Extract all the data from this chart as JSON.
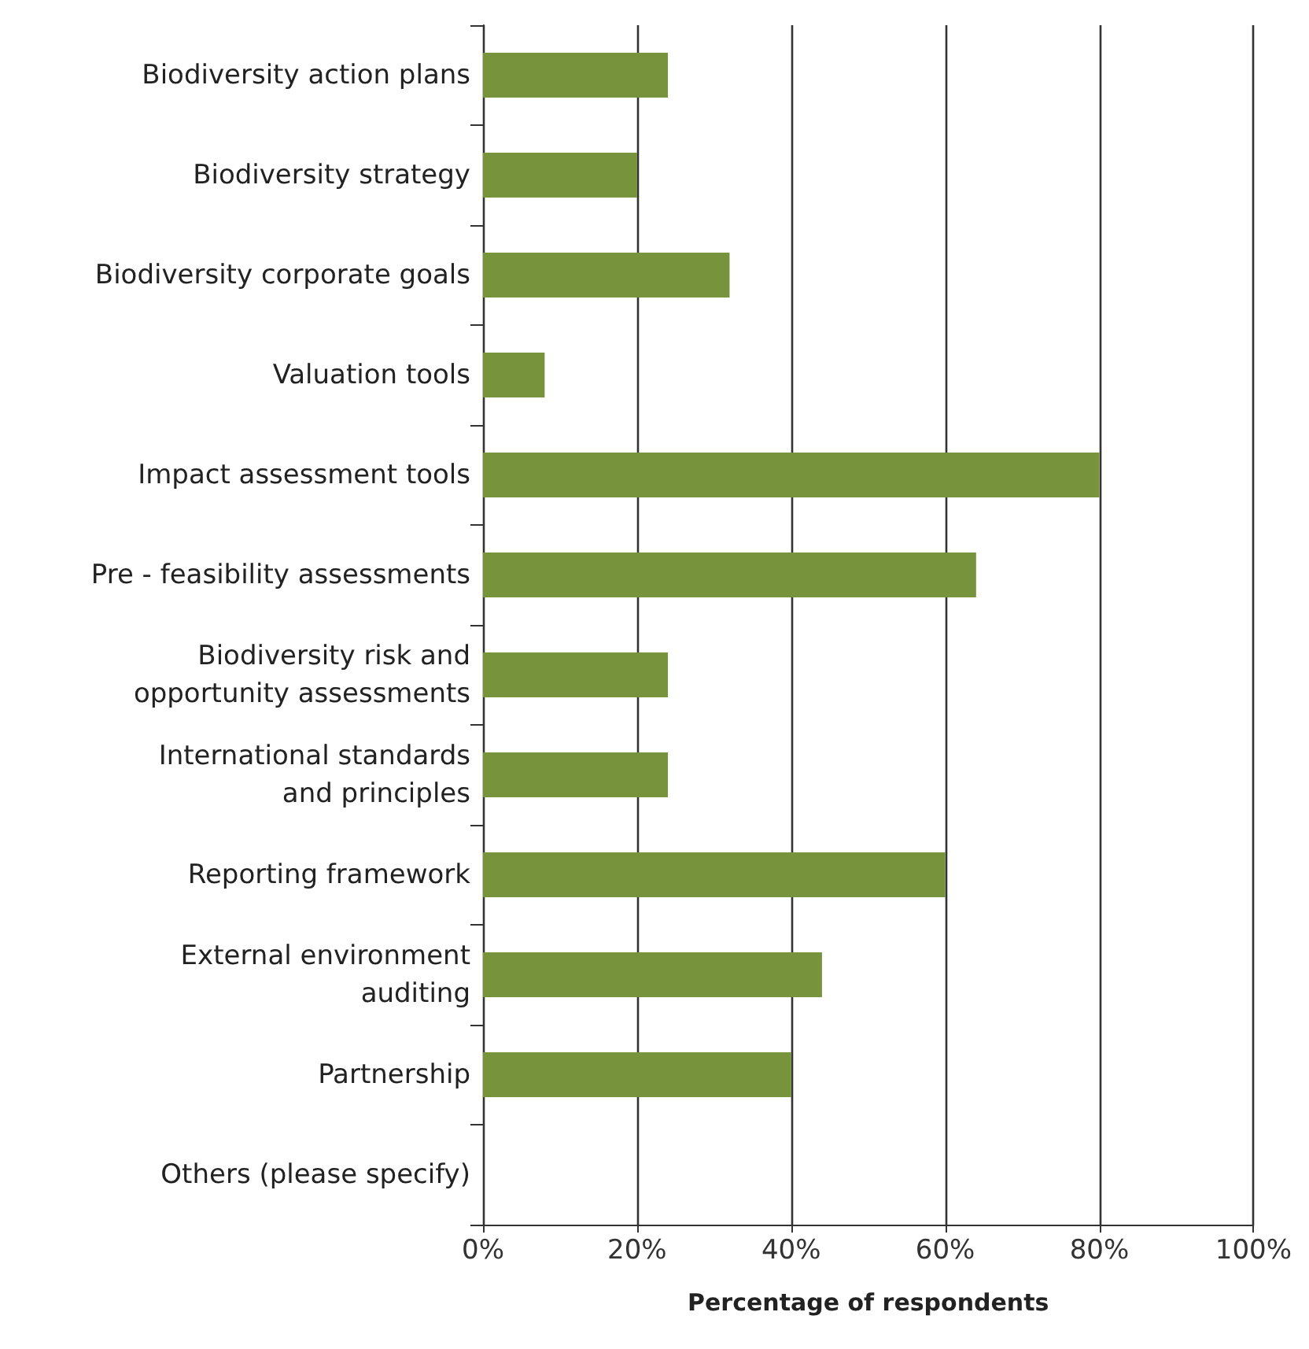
{
  "chart_data": {
    "type": "bar",
    "orientation": "horizontal",
    "xlabel": "Percentage of respondents",
    "categories": [
      "Biodiversity action plans",
      "Biodiversity strategy",
      "Biodiversity corporate goals",
      "Valuation tools",
      "Impact assessment tools",
      "Pre - feasibility assessments",
      "Biodiversity risk and\nopportunity assessments",
      "International standards\nand principles",
      "Reporting framework",
      "External environment\nauditing",
      "Partnership",
      "Others (please specify)"
    ],
    "values": [
      24,
      20,
      32,
      8,
      80,
      64,
      24,
      24,
      60,
      44,
      40,
      0
    ],
    "color": "#77933c",
    "xlim": [
      0,
      100
    ],
    "xticks": [
      {
        "value": 0,
        "label": "0%"
      },
      {
        "value": 20,
        "label": "20%"
      },
      {
        "value": 40,
        "label": "40%"
      },
      {
        "value": 60,
        "label": "60%"
      },
      {
        "value": 80,
        "label": "80%"
      },
      {
        "value": 100,
        "label": "100%"
      }
    ],
    "grid": "x"
  }
}
